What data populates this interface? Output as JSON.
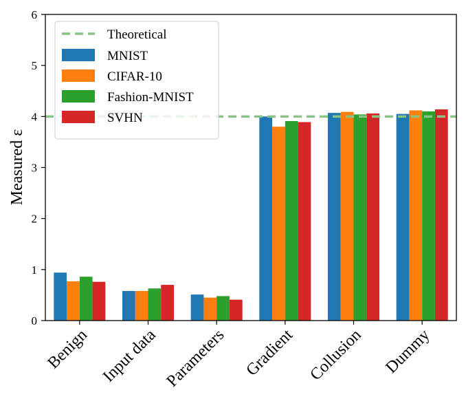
{
  "chart_data": {
    "type": "bar",
    "title": "",
    "xlabel": "",
    "ylabel": "Measured ε",
    "ylim": [
      0,
      6
    ],
    "yticks": [
      0,
      1,
      2,
      3,
      4,
      5,
      6
    ],
    "grid": false,
    "legend_position": "upper-left",
    "categories": [
      "Benign",
      "Input data",
      "Parameters",
      "Gradient",
      "Collusion",
      "Dummy"
    ],
    "series": [
      {
        "name": "MNIST",
        "color": "#1f77b4",
        "values": [
          0.94,
          0.58,
          0.51,
          4.0,
          4.07,
          4.05
        ]
      },
      {
        "name": "CIFAR-10",
        "color": "#ff7f0e",
        "values": [
          0.77,
          0.58,
          0.45,
          3.8,
          4.09,
          4.12
        ]
      },
      {
        "name": "Fashion-MNIST",
        "color": "#2ca02c",
        "values": [
          0.86,
          0.63,
          0.48,
          3.91,
          4.04,
          4.1
        ]
      },
      {
        "name": "SVHN",
        "color": "#d62728",
        "values": [
          0.76,
          0.7,
          0.41,
          3.89,
          4.06,
          4.14
        ]
      }
    ],
    "reference_line": {
      "name": "Theoretical",
      "value": 4,
      "color": "#87c587",
      "style": "dashed"
    }
  }
}
